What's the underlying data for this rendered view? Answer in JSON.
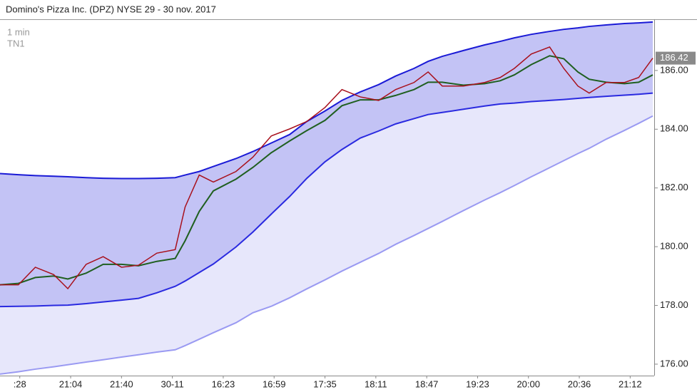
{
  "chart_data": {
    "type": "line",
    "title": "Domino's Pizza Inc. (DPZ) NYSE 29 - 30 nov. 2017",
    "annotations": [
      "1 min",
      "TN1"
    ],
    "x": [
      0,
      13,
      25,
      38,
      48,
      61,
      73,
      86,
      98,
      111,
      124,
      131,
      141,
      151,
      167,
      179,
      192,
      205,
      217,
      230,
      242,
      255,
      268,
      280,
      293,
      303,
      313,
      328,
      343,
      354,
      364,
      376,
      389,
      399,
      409,
      417,
      429,
      442,
      452,
      462
    ],
    "xlim": [
      0,
      463
    ],
    "xticks": [
      {
        "value": 14,
        "label": ":28"
      },
      {
        "value": 50,
        "label": "21:04"
      },
      {
        "value": 86,
        "label": "21:40"
      },
      {
        "value": 122,
        "label": "30-11"
      },
      {
        "value": 158,
        "label": "16:23"
      },
      {
        "value": 194,
        "label": "16:59"
      },
      {
        "value": 230,
        "label": "17:35"
      },
      {
        "value": 266,
        "label": "18:11"
      },
      {
        "value": 302,
        "label": "18:47"
      },
      {
        "value": 338,
        "label": "19:23"
      },
      {
        "value": 374,
        "label": "20:00"
      },
      {
        "value": 410,
        "label": "20:36"
      },
      {
        "value": 446,
        "label": "21:12"
      }
    ],
    "ylim": [
      175.61,
      187.72
    ],
    "yticks": [
      {
        "value": 176,
        "label": "176.00"
      },
      {
        "value": 178,
        "label": "178.00"
      },
      {
        "value": 180,
        "label": "180.00"
      },
      {
        "value": 182,
        "label": "182.00"
      },
      {
        "value": 184,
        "label": "184.00"
      },
      {
        "value": 186,
        "label": "186.00"
      }
    ],
    "series": [
      {
        "color": "#a8101c",
        "values": [
          178.7,
          178.7,
          179.3,
          179.05,
          178.57,
          179.4,
          179.66,
          179.3,
          179.37,
          179.78,
          179.9,
          181.35,
          182.44,
          182.2,
          182.56,
          183.05,
          183.77,
          184.01,
          184.26,
          184.74,
          185.35,
          185.1,
          184.98,
          185.35,
          185.59,
          185.95,
          185.47,
          185.47,
          185.59,
          185.76,
          186.07,
          186.56,
          186.8,
          186.07,
          185.47,
          185.23,
          185.59,
          185.59,
          185.76,
          186.42
        ]
      },
      {
        "color": "#1f5f1f",
        "values": [
          178.7,
          178.75,
          178.95,
          179.0,
          178.9,
          179.1,
          179.4,
          179.4,
          179.35,
          179.5,
          179.6,
          180.2,
          181.2,
          181.9,
          182.3,
          182.7,
          183.2,
          183.6,
          183.95,
          184.3,
          184.8,
          185.0,
          185.0,
          185.15,
          185.35,
          185.6,
          185.6,
          185.5,
          185.55,
          185.65,
          185.85,
          186.2,
          186.5,
          186.4,
          185.95,
          185.7,
          185.6,
          185.55,
          185.6,
          185.85
        ]
      },
      {
        "color": "#1a1ad6",
        "values": [
          182.49,
          182.45,
          182.42,
          182.4,
          182.38,
          182.35,
          182.33,
          182.32,
          182.32,
          182.33,
          182.35,
          182.44,
          182.56,
          182.73,
          183.0,
          183.24,
          183.53,
          183.82,
          184.26,
          184.62,
          184.98,
          185.27,
          185.52,
          185.81,
          186.07,
          186.31,
          186.48,
          186.68,
          186.87,
          186.99,
          187.11,
          187.23,
          187.33,
          187.4,
          187.45,
          187.5,
          187.55,
          187.6,
          187.62,
          187.65
        ]
      },
      {
        "color": "#2a2ae0",
        "values": [
          177.96,
          177.97,
          177.98,
          178.0,
          178.01,
          178.06,
          178.12,
          178.18,
          178.24,
          178.43,
          178.65,
          178.83,
          179.12,
          179.41,
          179.99,
          180.5,
          181.11,
          181.71,
          182.32,
          182.89,
          183.31,
          183.7,
          183.94,
          184.18,
          184.36,
          184.5,
          184.57,
          184.68,
          184.79,
          184.86,
          184.89,
          184.94,
          184.98,
          185.01,
          185.05,
          185.08,
          185.12,
          185.16,
          185.19,
          185.23
        ]
      },
      {
        "color": "#9a9af2",
        "values": [
          175.66,
          175.74,
          175.83,
          175.91,
          175.98,
          176.07,
          176.15,
          176.24,
          176.32,
          176.41,
          176.49,
          176.63,
          176.85,
          177.07,
          177.41,
          177.75,
          177.97,
          178.26,
          178.56,
          178.87,
          179.17,
          179.47,
          179.77,
          180.08,
          180.38,
          180.62,
          180.86,
          181.23,
          181.59,
          181.84,
          182.08,
          182.38,
          182.69,
          182.93,
          183.17,
          183.35,
          183.66,
          183.96,
          184.2,
          184.45
        ]
      }
    ]
  }
}
